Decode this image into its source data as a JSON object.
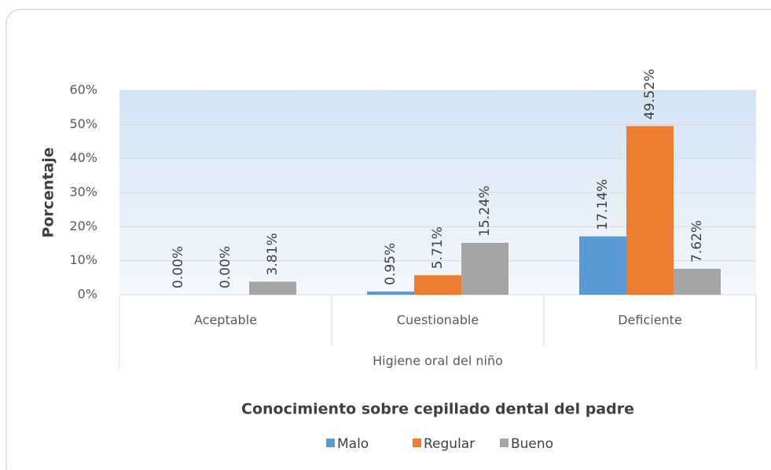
{
  "chart_data": {
    "type": "bar",
    "ylabel": "Porcentaje",
    "xlabel": "Higiene oral del niño",
    "legend_title": "Conocimiento sobre cepillado dental del padre",
    "categories": [
      "Aceptable",
      "Cuestionable",
      "Deficiente"
    ],
    "series": [
      {
        "name": "Malo",
        "color": "#5b9bd5",
        "values": [
          0,
          0.95,
          17.14
        ],
        "value_labels": [
          "0.00%",
          "0.95%",
          "17.14%"
        ]
      },
      {
        "name": "Regular",
        "color": "#ed7d31",
        "values": [
          0,
          5.71,
          49.52
        ],
        "value_labels": [
          "0.00%",
          "5.71%",
          "49.52%"
        ]
      },
      {
        "name": "Bueno",
        "color": "#a5a5a5",
        "values": [
          3.81,
          15.24,
          7.62
        ],
        "value_labels": [
          "3.81%",
          "15.24%",
          "7.62%"
        ]
      }
    ],
    "ylim": [
      0,
      60
    ],
    "yticks": [
      {
        "value": 0,
        "label": "0%"
      },
      {
        "value": 10,
        "label": "10%"
      },
      {
        "value": 20,
        "label": "20%"
      },
      {
        "value": 30,
        "label": "30%"
      },
      {
        "value": 40,
        "label": "40%"
      },
      {
        "value": 50,
        "label": "50%"
      },
      {
        "value": 60,
        "label": "60%"
      }
    ],
    "grid": true,
    "legend": "bottom"
  }
}
